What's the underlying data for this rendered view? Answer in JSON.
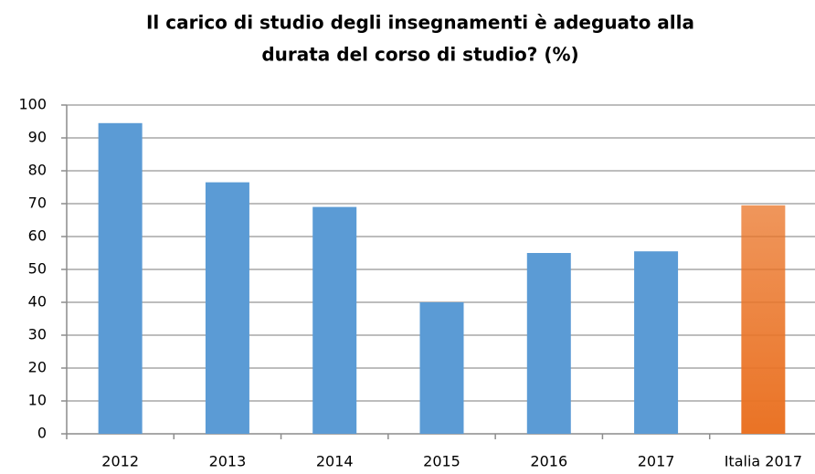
{
  "chart_data": {
    "type": "bar",
    "title": [
      "Il carico di studio degli insegnamenti è adeguato alla",
      "durata del corso di studio? (%)"
    ],
    "categories": [
      "2012",
      "2013",
      "2014",
      "2015",
      "2016",
      "2017",
      "Italia 2017"
    ],
    "values": [
      94.5,
      76.5,
      69,
      40,
      55,
      55.5,
      69.5
    ],
    "colors": [
      "#5b9bd5",
      "#5b9bd5",
      "#5b9bd5",
      "#5b9bd5",
      "#5b9bd5",
      "#5b9bd5",
      "#ea7325"
    ],
    "ylim": [
      0,
      100
    ],
    "yticks": [
      0,
      10,
      20,
      30,
      40,
      50,
      60,
      70,
      80,
      90,
      100
    ],
    "grid": true
  }
}
